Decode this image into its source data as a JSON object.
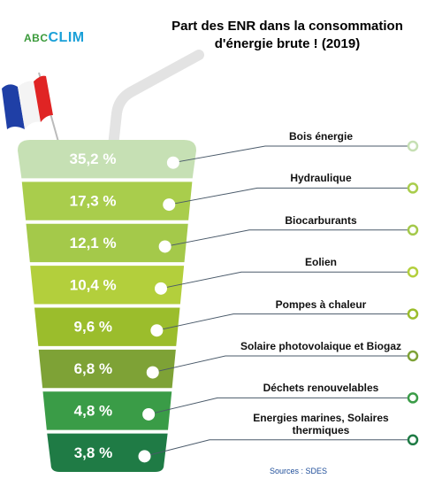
{
  "logo": {
    "left": "ABC",
    "right": "CLIM"
  },
  "source": "Sources : SDES",
  "chart_data": {
    "type": "funnel",
    "title": "Part des ENR dans la consommation d'énergie brute !  (2019)",
    "categories": [
      "Bois énergie",
      "Hydraulique",
      "Biocarburants",
      "Eolien",
      "Pompes à chaleur",
      "Solaire photovolaique et Biogaz",
      "Déchets renouvelables",
      "Energies marines, Solaires thermiques"
    ],
    "values": [
      35.2,
      17.3,
      12.1,
      10.4,
      9.6,
      6.8,
      4.8,
      3.8
    ],
    "value_labels": [
      "35,2 %",
      "17,3 %",
      "12,1 %",
      "10,4 %",
      "9,6 %",
      "6,8 %",
      "4,8 %",
      "3,8 %"
    ],
    "colors": [
      "#c6e0b4",
      "#a9cd4c",
      "#a4c94a",
      "#b3cf3c",
      "#9bbd2c",
      "#7ea236",
      "#3a9c47",
      "#1f7b45"
    ]
  }
}
